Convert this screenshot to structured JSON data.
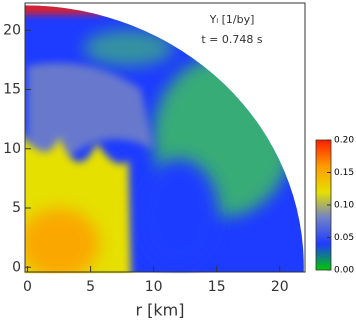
{
  "chart_data": {
    "type": "heatmap",
    "title": "Yₗ [1/by]",
    "subtitle": "t = 0.748 s",
    "x_label": "r [km]",
    "xlim": [
      -0.2,
      22
    ],
    "ylim": [
      -0.4,
      22.3
    ],
    "xticks": [
      0,
      5,
      10,
      15,
      20
    ],
    "yticks": [
      0,
      5,
      10,
      15,
      20
    ],
    "colorbar": {
      "lim": [
        0,
        0.2
      ],
      "colors": [
        "#00c800",
        "#1e3cff",
        "#7080c8",
        "#e6e000",
        "#ff9a00",
        "#ff1e00"
      ],
      "ticks": [
        {
          "value": 0,
          "label": "0.00"
        },
        {
          "value": 0.05,
          "label": "0.05"
        },
        {
          "value": 0.1,
          "label": "0.10"
        },
        {
          "value": 0.15,
          "label": "0.15"
        },
        {
          "value": 0.2,
          "label": "0.20"
        }
      ]
    }
  }
}
